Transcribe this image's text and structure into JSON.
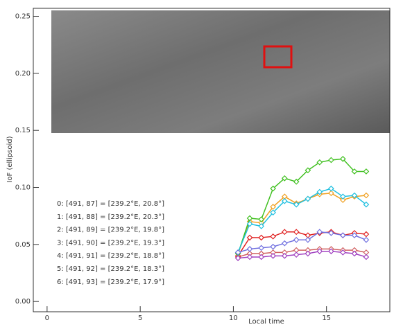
{
  "chart_data": {
    "type": "line",
    "y_label": "IoF (ellipsoid)",
    "x_label": "Local time",
    "xlim": [
      -0.74,
      18.4
    ],
    "ylim": [
      -0.009,
      0.257
    ],
    "xticks": [
      0,
      5,
      10,
      15
    ],
    "yticks": [
      {
        "value": 0,
        "label": "0.00"
      },
      {
        "value": 0.05,
        "label": "0.05"
      },
      {
        "value": 0.1,
        "label": "0.10"
      },
      {
        "value": 0.15,
        "label": "0.15"
      },
      {
        "value": 0.2,
        "label": "0.20"
      },
      {
        "value": 0.25,
        "label": "0.25"
      }
    ],
    "x": [
      10.25,
      10.88,
      11.5,
      12.13,
      12.75,
      13.38,
      14.0,
      14.63,
      15.25,
      15.88,
      16.5,
      17.13
    ],
    "series": [
      {
        "name": "0: [491, 87] = [239.2°E, 20.8°]",
        "color": "#d06060",
        "values": [
          0.039,
          0.042,
          0.042,
          0.043,
          0.043,
          0.045,
          0.045,
          0.046,
          0.046,
          0.045,
          0.045,
          0.043
        ]
      },
      {
        "name": "1: [491, 88] = [239.2°E, 20.3°]",
        "color": "#e02020",
        "values": [
          0.04,
          0.056,
          0.056,
          0.057,
          0.061,
          0.061,
          0.058,
          0.06,
          0.061,
          0.058,
          0.06,
          0.059
        ]
      },
      {
        "name": "2: [491, 89] = [239.2°E, 19.8°]",
        "color": "#f0a020",
        "values": [
          0.042,
          0.07,
          0.069,
          0.083,
          0.092,
          0.086,
          0.09,
          0.094,
          0.095,
          0.089,
          0.092,
          0.093
        ]
      },
      {
        "name": "3: [491, 90] = [239.2°E, 19.3°]",
        "color": "#40c020",
        "values": [
          0.042,
          0.073,
          0.072,
          0.099,
          0.108,
          0.105,
          0.115,
          0.122,
          0.124,
          0.125,
          0.114,
          0.114
        ]
      },
      {
        "name": "4: [491, 91] = [239.2°E, 18.8°]",
        "color": "#20c0e0",
        "values": [
          0.043,
          0.068,
          0.066,
          0.078,
          0.088,
          0.085,
          0.09,
          0.096,
          0.099,
          0.092,
          0.093,
          0.085
        ]
      },
      {
        "name": "5: [491, 92] = [239.2°E, 18.3°]",
        "color": "#7070e0",
        "values": [
          0.043,
          0.046,
          0.047,
          0.048,
          0.051,
          0.054,
          0.054,
          0.061,
          0.06,
          0.058,
          0.058,
          0.054
        ]
      },
      {
        "name": "6: [491, 93] = [239.2°E, 17.9°]",
        "color": "#a040c0",
        "values": [
          0.038,
          0.039,
          0.039,
          0.04,
          0.04,
          0.041,
          0.042,
          0.044,
          0.044,
          0.043,
          0.042,
          0.039
        ]
      }
    ]
  }
}
